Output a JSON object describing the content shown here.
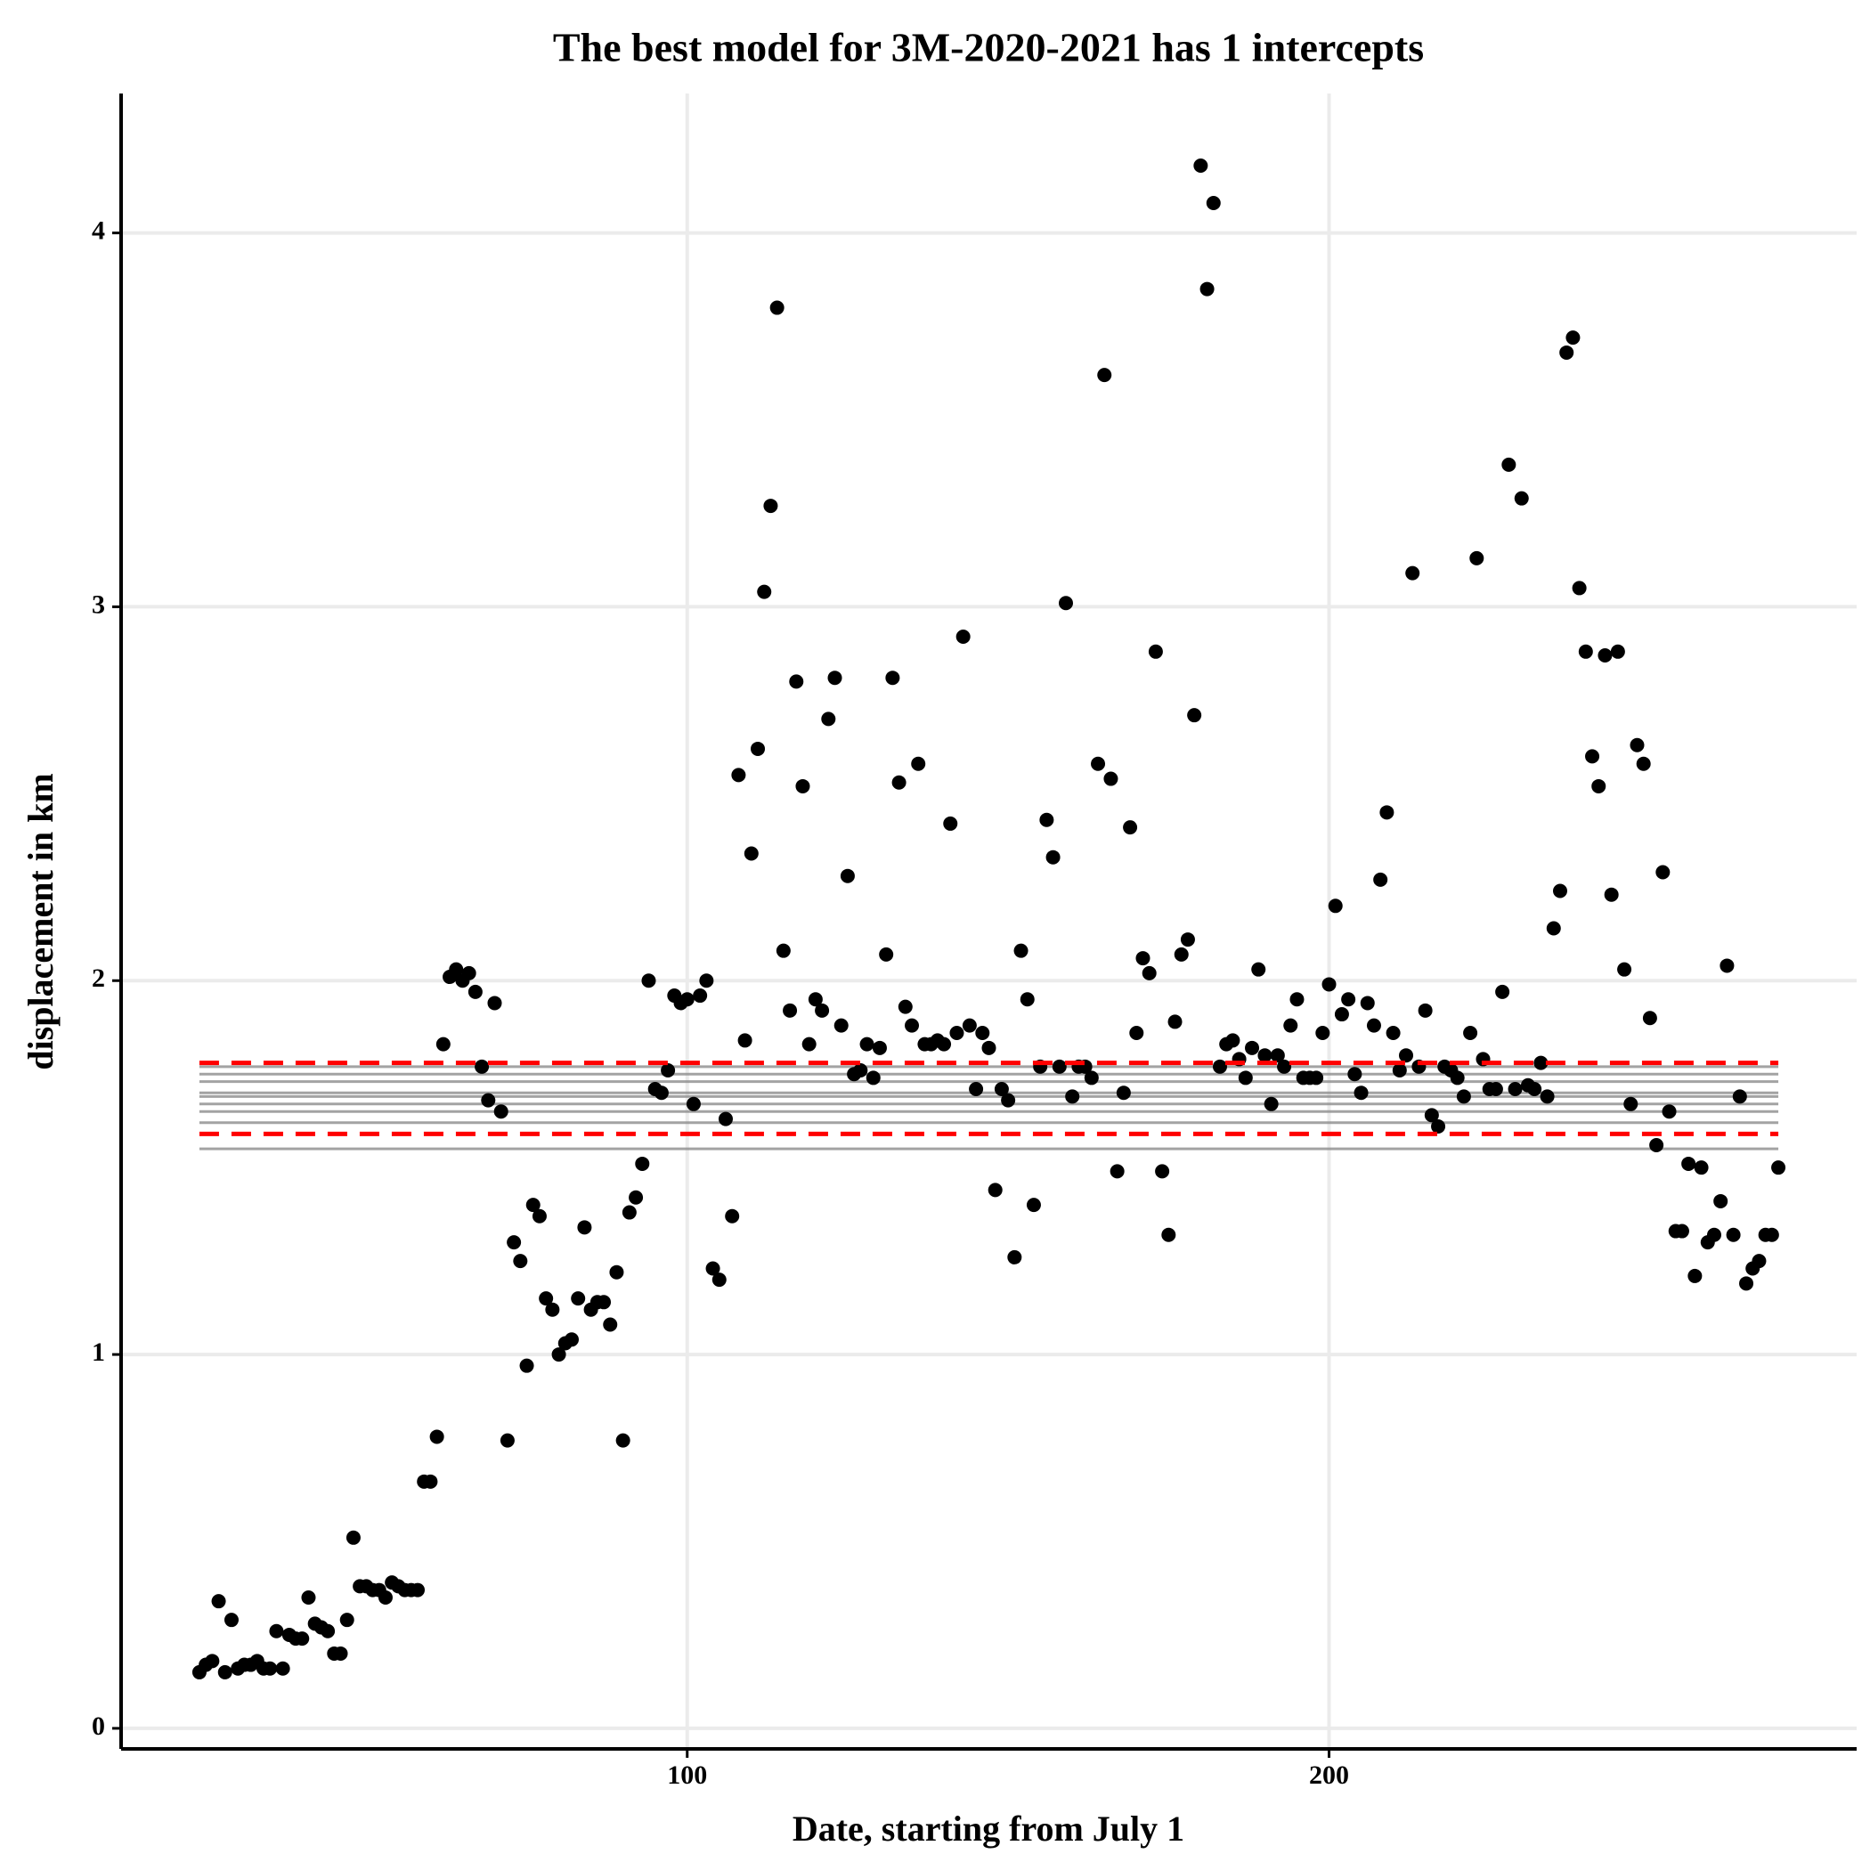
{
  "chart_data": {
    "type": "scatter",
    "title": "The best model for 3M-2020-2021 has 1 intercepts",
    "x_label": "Date, starting from July 1",
    "y_label": "displacement in km",
    "xlim": [
      11.8,
      282.2
    ],
    "ylim": [
      -0.055,
      4.373
    ],
    "xticks": [
      100,
      200
    ],
    "yticks": [
      0,
      1,
      2,
      3,
      4
    ],
    "grid": true,
    "color": "#000000",
    "x": [
      24,
      25,
      26,
      27,
      28,
      29,
      30,
      31,
      32,
      33,
      34,
      35,
      36,
      37,
      38,
      39,
      40,
      41,
      42,
      43,
      44,
      45,
      46,
      47,
      48,
      49,
      50,
      51,
      52,
      53,
      54,
      55,
      56,
      57,
      58,
      59,
      60,
      61,
      62,
      63,
      64,
      65,
      66,
      67,
      68,
      69,
      70,
      71,
      72,
      73,
      74,
      75,
      76,
      77,
      78,
      79,
      80,
      81,
      82,
      83,
      84,
      85,
      86,
      87,
      88,
      89,
      90,
      91,
      92,
      93,
      94,
      95,
      96,
      97,
      98,
      99,
      100,
      101,
      102,
      103,
      104,
      105,
      106,
      107,
      108,
      109,
      110,
      111,
      112,
      113,
      114,
      115,
      116,
      117,
      118,
      119,
      120,
      121,
      122,
      123,
      124,
      125,
      126,
      127,
      128,
      129,
      130,
      131,
      132,
      133,
      134,
      135,
      136,
      137,
      138,
      139,
      140,
      141,
      142,
      143,
      144,
      145,
      146,
      147,
      148,
      149,
      150,
      151,
      152,
      153,
      154,
      155,
      156,
      157,
      158,
      159,
      160,
      161,
      162,
      163,
      164,
      165,
      166,
      167,
      168,
      169,
      170,
      171,
      172,
      173,
      174,
      175,
      176,
      177,
      178,
      179,
      180,
      181,
      182,
      183,
      184,
      185,
      186,
      187,
      188,
      189,
      190,
      191,
      192,
      193,
      194,
      195,
      196,
      197,
      198,
      199,
      200,
      201,
      202,
      203,
      204,
      205,
      206,
      207,
      208,
      209,
      210,
      211,
      212,
      213,
      214,
      215,
      216,
      217,
      218,
      219,
      220,
      221,
      222,
      223,
      224,
      225,
      226,
      227,
      228,
      229,
      230,
      231,
      232,
      233,
      234,
      235,
      236,
      237,
      238,
      239,
      240,
      241,
      242,
      243,
      244,
      245,
      246,
      247,
      248,
      249,
      250,
      251,
      252,
      253,
      254,
      255,
      256,
      257,
      258,
      259,
      260,
      261,
      262,
      263,
      264,
      265,
      266,
      267,
      268,
      269,
      270
    ],
    "values": [
      0.15,
      0.17,
      0.18,
      0.34,
      0.15,
      0.29,
      0.16,
      0.17,
      0.17,
      0.18,
      0.16,
      0.16,
      0.26,
      0.16,
      0.25,
      0.24,
      0.24,
      0.35,
      0.28,
      0.27,
      0.26,
      0.2,
      0.2,
      0.29,
      0.51,
      0.38,
      0.38,
      0.37,
      0.37,
      0.35,
      0.39,
      0.38,
      0.37,
      0.37,
      0.37,
      0.66,
      0.66,
      0.78,
      1.83,
      2.01,
      2.03,
      2.0,
      2.02,
      1.97,
      1.77,
      1.68,
      1.94,
      1.65,
      0.77,
      1.3,
      1.25,
      0.97,
      1.4,
      1.37,
      1.15,
      1.12,
      1.0,
      1.03,
      1.04,
      1.15,
      1.34,
      1.12,
      1.14,
      1.14,
      1.08,
      1.22,
      0.77,
      1.38,
      1.42,
      1.51,
      2.0,
      1.71,
      1.7,
      1.76,
      1.96,
      1.94,
      1.95,
      1.67,
      1.96,
      2.0,
      1.23,
      1.2,
      1.63,
      1.37,
      2.55,
      1.84,
      2.34,
      2.62,
      3.04,
      3.27,
      3.8,
      2.08,
      1.92,
      2.8,
      2.52,
      1.83,
      1.95,
      1.92,
      2.7,
      2.81,
      1.88,
      2.28,
      1.75,
      1.76,
      1.83,
      1.74,
      1.82,
      2.07,
      2.81,
      2.53,
      1.93,
      1.88,
      2.58,
      1.83,
      1.83,
      1.84,
      1.83,
      2.42,
      1.86,
      2.92,
      1.88,
      1.71,
      1.86,
      1.82,
      1.44,
      1.71,
      1.68,
      1.26,
      2.08,
      1.95,
      1.4,
      1.77,
      2.43,
      2.33,
      1.77,
      3.01,
      1.69,
      1.77,
      1.77,
      1.74,
      2.58,
      3.62,
      2.54,
      1.49,
      1.7,
      2.41,
      1.86,
      2.06,
      2.02,
      2.88,
      1.49,
      1.32,
      1.89,
      2.07,
      2.11,
      2.71,
      4.18,
      3.85,
      4.08,
      1.77,
      1.83,
      1.84,
      1.79,
      1.74,
      1.82,
      2.03,
      1.8,
      1.67,
      1.8,
      1.77,
      1.88,
      1.95,
      1.74,
      1.74,
      1.74,
      1.86,
      1.99,
      2.2,
      1.91,
      1.95,
      1.75,
      1.7,
      1.94,
      1.88,
      2.27,
      2.45,
      1.86,
      1.76,
      1.8,
      3.09,
      1.77,
      1.92,
      1.64,
      1.61,
      1.77,
      1.76,
      1.74,
      1.69,
      1.86,
      3.13,
      1.79,
      1.71,
      1.71,
      1.97,
      3.38,
      1.71,
      3.29,
      1.72,
      1.71,
      1.78,
      1.69,
      2.14,
      2.24,
      3.68,
      3.72,
      3.05,
      2.88,
      2.6,
      2.52,
      2.87,
      2.23,
      2.88,
      2.03,
      1.67,
      2.63,
      2.58,
      1.9,
      1.56,
      2.29,
      1.65,
      1.33,
      1.33,
      1.51,
      1.21,
      1.5,
      1.3,
      1.32,
      1.41,
      2.04,
      1.32,
      1.69,
      1.19,
      1.23,
      1.25,
      1.32,
      1.32,
      1.5
    ],
    "line_xlim": [
      24,
      270
    ],
    "model_lines": {
      "values": [
        1.77,
        1.75,
        1.73,
        1.7,
        1.69,
        1.67,
        1.65,
        1.62,
        1.55
      ],
      "color": "#8c8c8c"
    },
    "interval_lines": {
      "values": [
        1.78,
        1.59
      ],
      "color": "#ff0000",
      "dashed": true
    }
  }
}
